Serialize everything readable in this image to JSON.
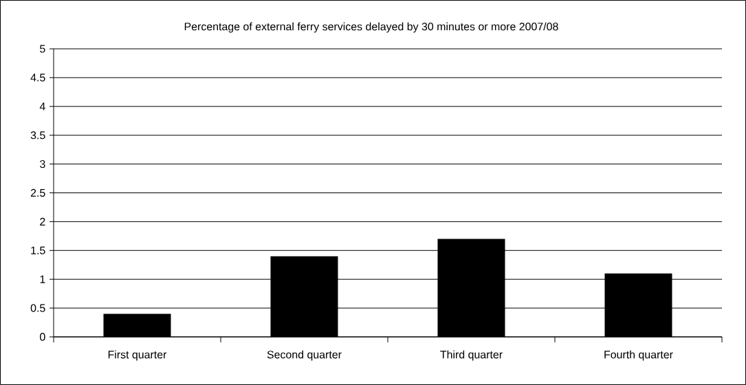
{
  "chart_data": {
    "type": "bar",
    "title": "Percentage of external ferry services delayed by 30 minutes or more 2007/08",
    "categories": [
      "First quarter",
      "Second quarter",
      "Third quarter",
      "Fourth quarter"
    ],
    "values": [
      0.4,
      1.4,
      1.7,
      1.1
    ],
    "color": "#000000",
    "ylim": [
      0,
      5
    ],
    "yticks": [
      0,
      0.5,
      1,
      1.5,
      2,
      2.5,
      3,
      3.5,
      4,
      4.5,
      5
    ],
    "grid": "y"
  }
}
